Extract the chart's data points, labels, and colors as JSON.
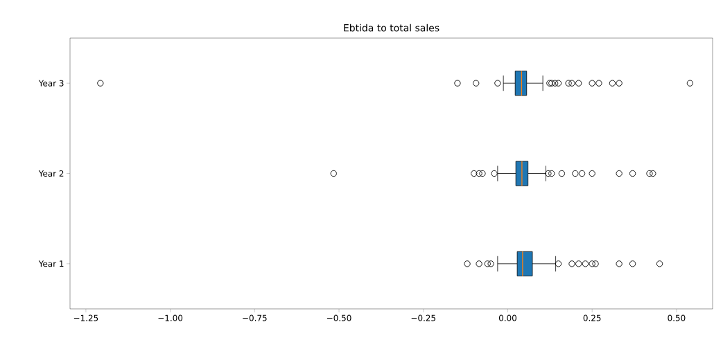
{
  "chart_data": {
    "type": "box",
    "orientation": "horizontal",
    "title": "Ebtida to total sales",
    "categories": [
      "Year 3",
      "Year 2",
      "Year 1"
    ],
    "color": "#1f77b4",
    "boxes": [
      {
        "low": -0.013,
        "q1": 0.022,
        "median": 0.041,
        "q3": 0.056,
        "high": 0.104,
        "outliers": [
          -1.207,
          -0.149,
          -0.094,
          -0.03,
          0.124,
          0.13,
          0.14,
          0.15,
          0.18,
          0.19,
          0.21,
          0.25,
          0.27,
          0.31,
          0.33,
          0.54
        ]
      },
      {
        "low": -0.03,
        "q1": 0.024,
        "median": 0.042,
        "q3": 0.06,
        "high": 0.113,
        "outliers": [
          -0.516,
          -0.1,
          -0.085,
          -0.075,
          -0.04,
          0.12,
          0.13,
          0.16,
          0.2,
          0.22,
          0.25,
          0.33,
          0.37,
          0.42,
          0.43
        ]
      },
      {
        "low": -0.03,
        "q1": 0.028,
        "median": 0.044,
        "q3": 0.073,
        "high": 0.142,
        "outliers": [
          -0.12,
          -0.085,
          -0.06,
          -0.05,
          0.15,
          0.19,
          0.21,
          0.23,
          0.25,
          0.26,
          0.33,
          0.37,
          0.45
        ]
      }
    ],
    "xlim": [
      -1.297,
      0.607
    ],
    "xticks": [
      {
        "value": -1.25,
        "label": "−1.25"
      },
      {
        "value": -1.0,
        "label": "−1.00"
      },
      {
        "value": -0.75,
        "label": "−0.75"
      },
      {
        "value": -0.5,
        "label": "−0.50"
      },
      {
        "value": -0.25,
        "label": "−0.25"
      },
      {
        "value": 0,
        "label": "0.00"
      },
      {
        "value": 0.25,
        "label": "0.25"
      },
      {
        "value": 0.5,
        "label": "0.50"
      }
    ]
  }
}
